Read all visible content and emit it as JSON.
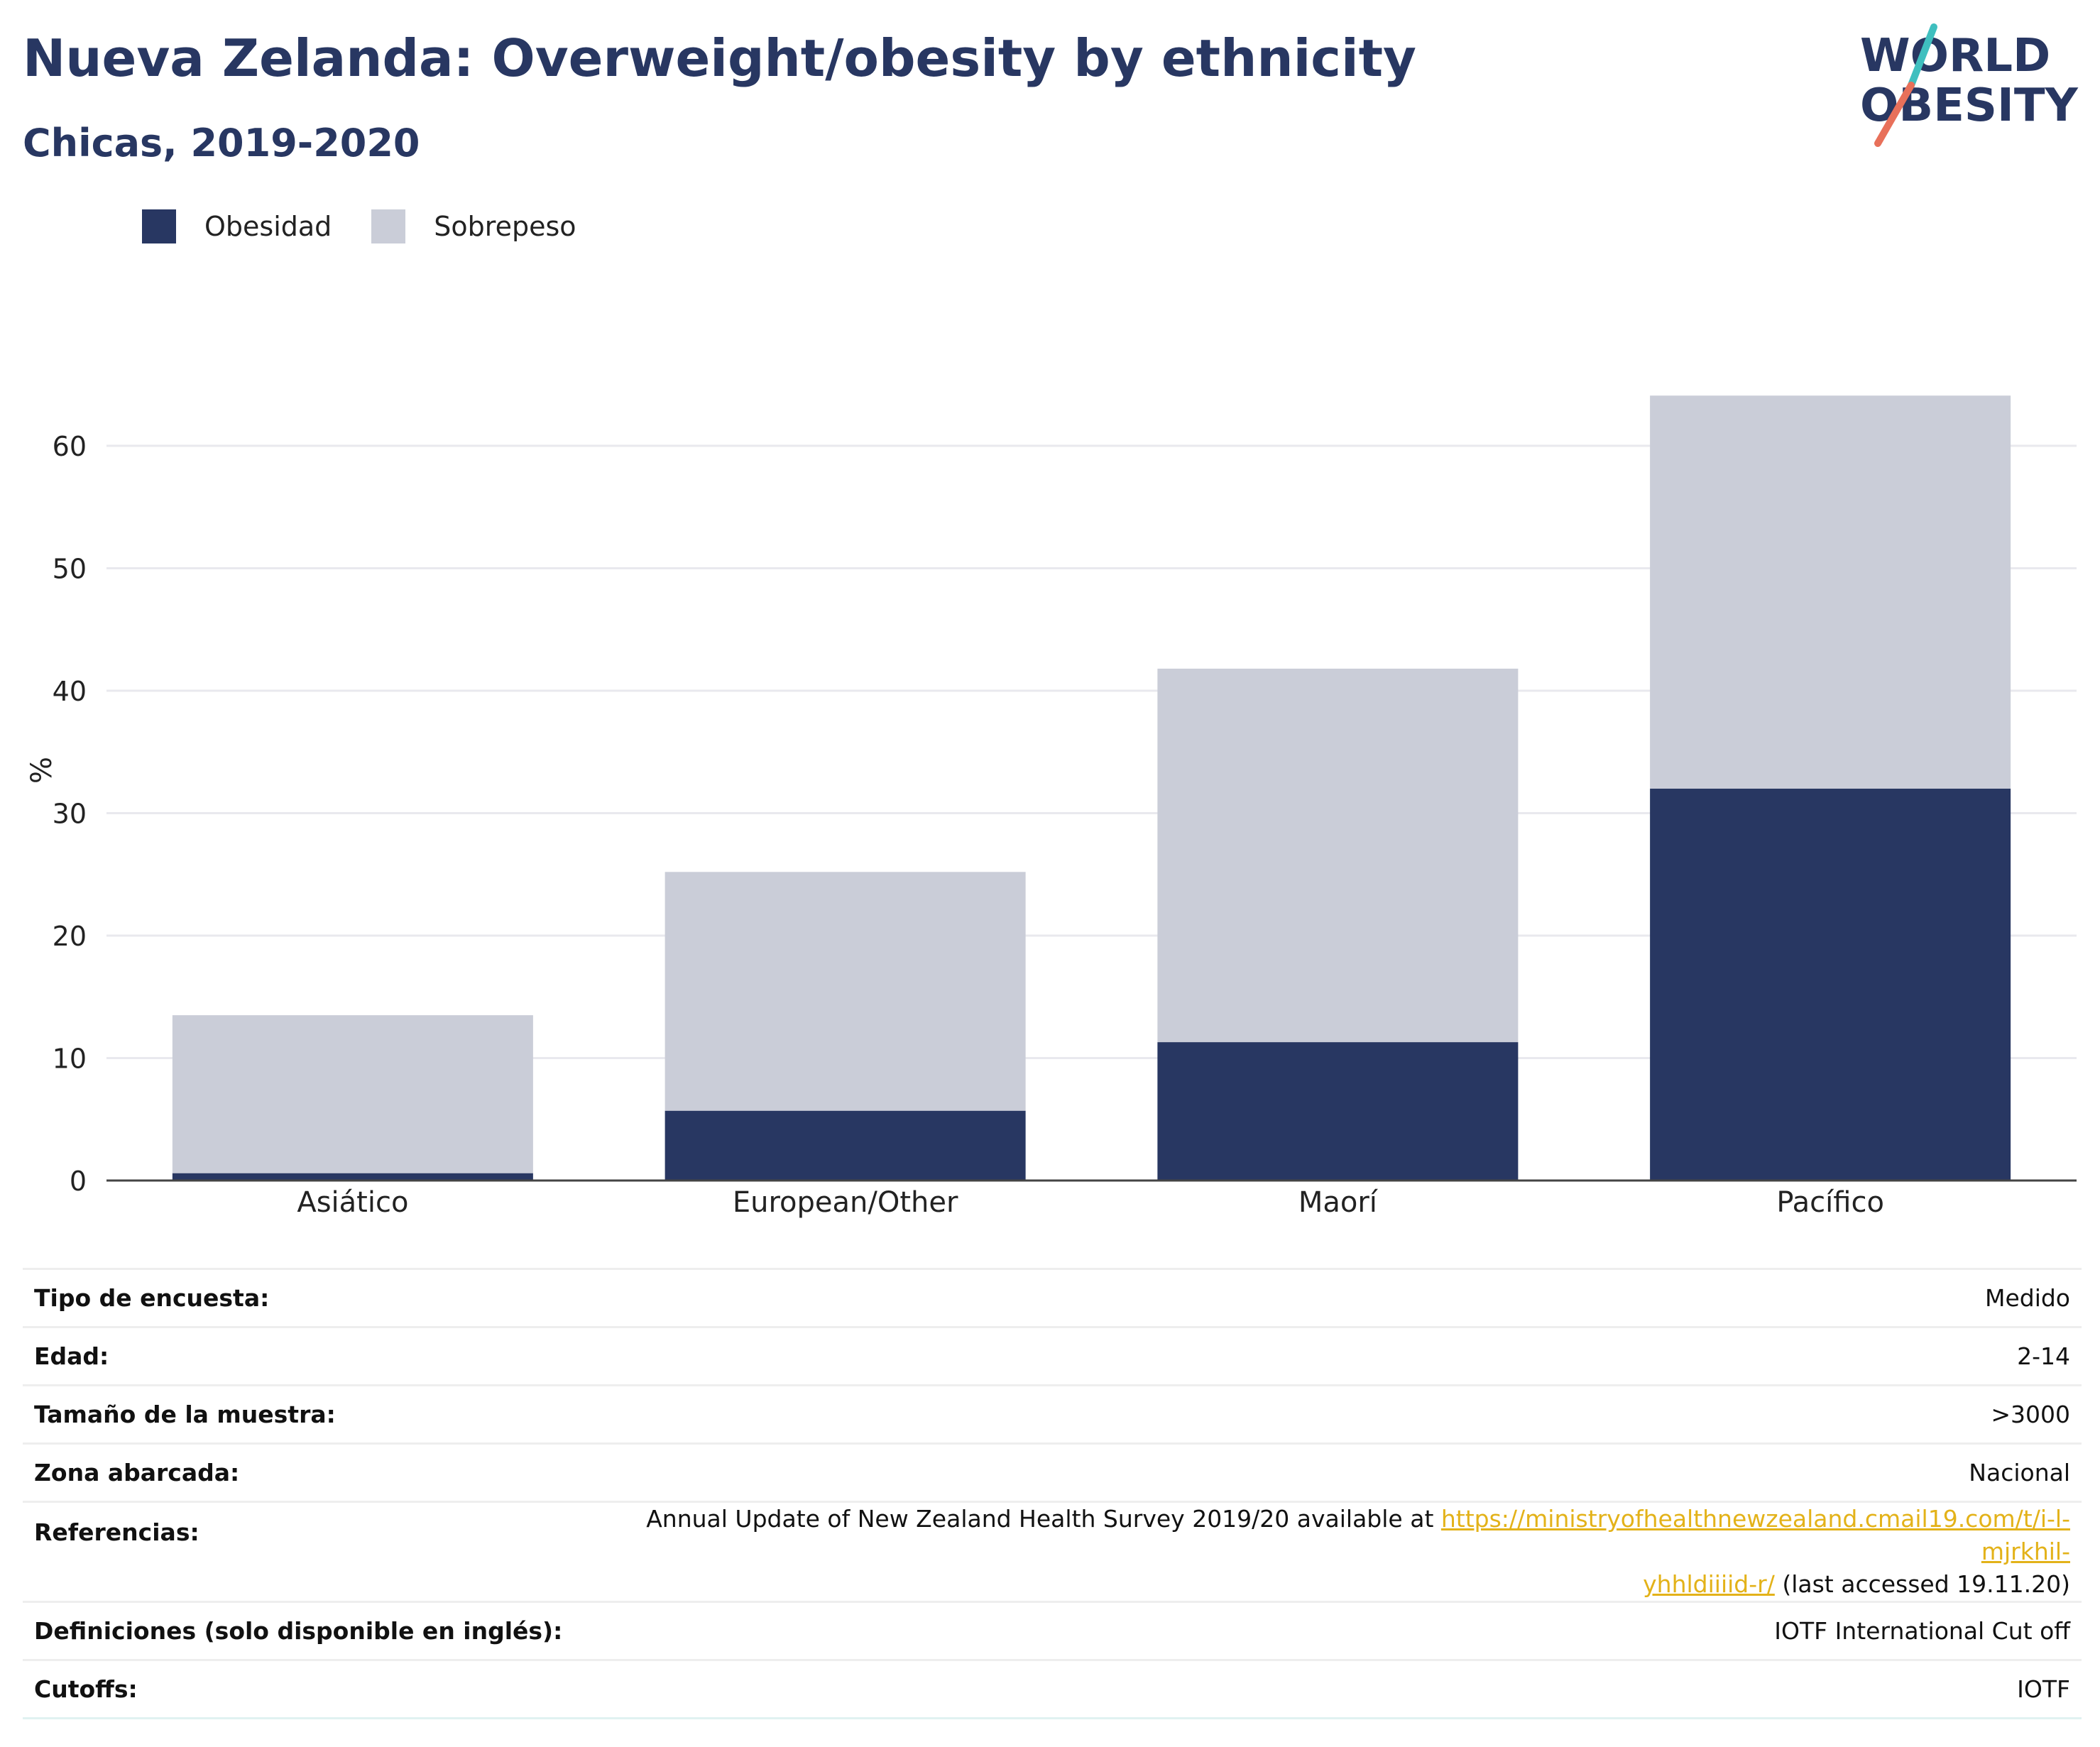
{
  "header": {
    "title": "Nueva Zelanda: Overweight/obesity by ethnicity",
    "subtitle": "Chicas, 2019-2020"
  },
  "logo": {
    "line1": "WORLD",
    "line2": "OBESITY",
    "colors": {
      "text": "#283762",
      "slash_top": "#3fbfbf",
      "slash_bottom": "#e8705a"
    }
  },
  "legend": {
    "items": [
      {
        "label": "Obesidad",
        "color": "#283762"
      },
      {
        "label": "Sobrepeso",
        "color": "#cacdd8"
      }
    ]
  },
  "chart_data": {
    "type": "bar",
    "stacked": true,
    "categories": [
      "Asiático",
      "European/Other",
      "Maorí",
      "Pacífico"
    ],
    "series": [
      {
        "name": "Obesidad",
        "values": [
          0.6,
          5.7,
          11.3,
          32.0
        ],
        "color": "#283762"
      },
      {
        "name": "Sobrepeso",
        "values": [
          12.9,
          19.5,
          30.5,
          32.1
        ],
        "color": "#cacdd8"
      }
    ],
    "totals": [
      13.5,
      25.2,
      41.8,
      64.1
    ],
    "title": "",
    "xlabel": "",
    "ylabel": "%",
    "ylim": [
      0,
      70
    ],
    "yticks": [
      0,
      10,
      20,
      30,
      40,
      50,
      60
    ],
    "grid": true,
    "legend_position": "top-left"
  },
  "info": {
    "rows": [
      {
        "key": "Tipo de encuesta:",
        "value": "Medido"
      },
      {
        "key": "Edad:",
        "value": "2-14"
      },
      {
        "key": "Tamaño de la muestra:",
        "value": ">3000"
      },
      {
        "key": "Zona abarcada:",
        "value": "Nacional"
      }
    ],
    "reference": {
      "key": "Referencias:",
      "text_before": "Annual Update of New Zealand Health Survey 2019/20 available at ",
      "link_part1": "https://ministryofhealthnewzealand.cmail19.com/t/i-l-mjrkhil-",
      "link_part2": "yhhldiiiid-r/",
      "text_after": " (last accessed 19.11.20)"
    },
    "rows2": [
      {
        "key": "Definiciones (solo disponible en inglés):",
        "value": "IOTF International Cut off"
      },
      {
        "key": "Cutoffs:",
        "value": "IOTF"
      }
    ]
  }
}
